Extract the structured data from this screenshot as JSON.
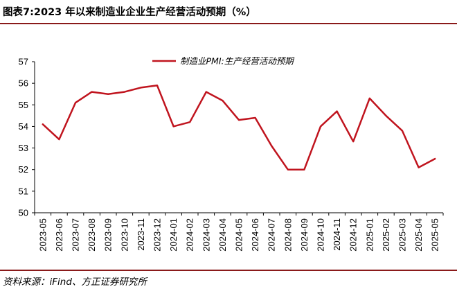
{
  "figure_title": "图表7:2023 年以来制造业企业生产经营活动预期（%）",
  "source": "资料来源：iFind、方正证券研究所",
  "colors": {
    "series": "#c0141e",
    "rule": "#8a1a1a",
    "axis": "#000000"
  },
  "chart_data": {
    "type": "line",
    "title": "",
    "xlabel": "",
    "ylabel": "",
    "ylim": [
      50,
      57
    ],
    "yticks": [
      50,
      51,
      52,
      53,
      54,
      55,
      56,
      57
    ],
    "grid": false,
    "legend_position": "top-center",
    "categories": [
      "2023-05",
      "2023-06",
      "2023-07",
      "2023-08",
      "2023-09",
      "2023-10",
      "2023-11",
      "2023-12",
      "2024-01",
      "2024-02",
      "2024-03",
      "2024-04",
      "2024-05",
      "2024-06",
      "2024-07",
      "2024-08",
      "2024-09",
      "2024-10",
      "2024-11",
      "2024-12",
      "2025-01",
      "2025-02",
      "2025-03",
      "2025-04",
      "2025-05"
    ],
    "series": [
      {
        "name": "制造业PMI:生产经营活动预期",
        "values": [
          54.1,
          53.4,
          55.1,
          55.6,
          55.5,
          55.6,
          55.8,
          55.9,
          54.0,
          54.2,
          55.6,
          55.2,
          54.3,
          54.4,
          53.1,
          52.0,
          52.0,
          54.0,
          54.7,
          53.3,
          55.3,
          54.5,
          53.8,
          52.1,
          52.5
        ]
      }
    ]
  }
}
